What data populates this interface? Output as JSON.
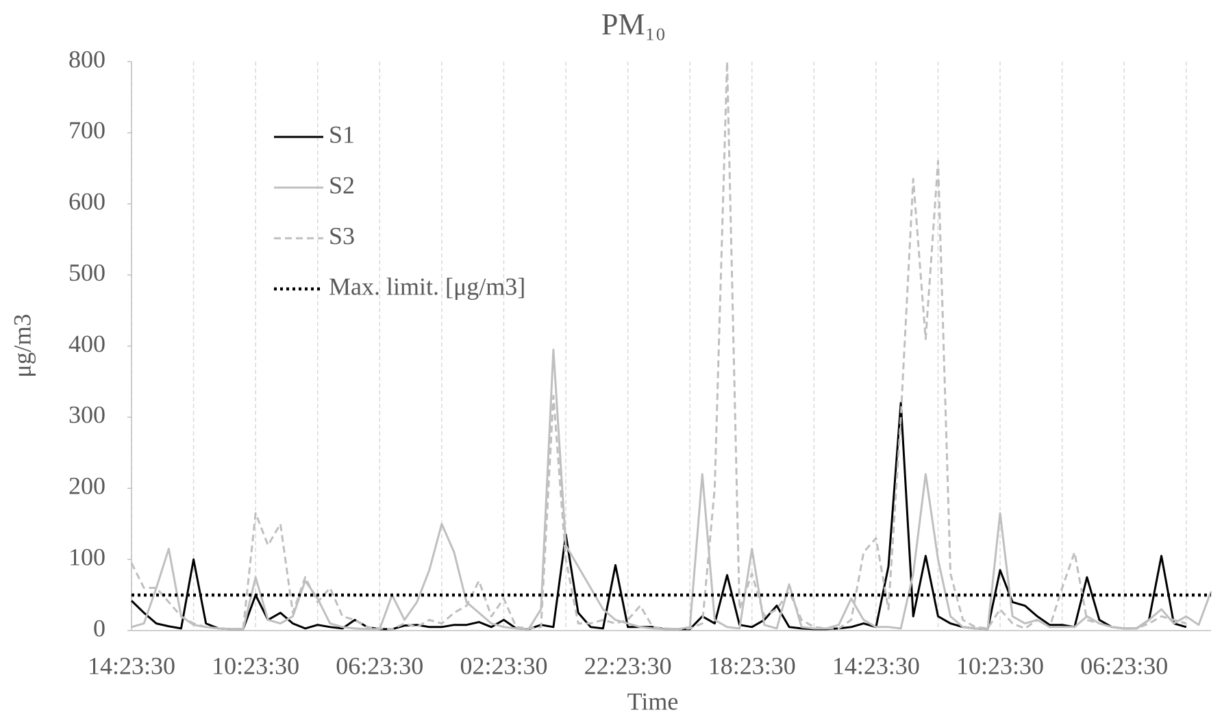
{
  "chart_data": {
    "type": "line",
    "title": "PM₁₀",
    "x_label": "Time",
    "y_label": "μg/m3",
    "categories": [
      "14:23:30",
      null,
      null,
      null,
      null,
      null,
      null,
      null,
      null,
      null,
      "10:23:30",
      null,
      null,
      null,
      null,
      null,
      null,
      null,
      null,
      null,
      "06:23:30",
      null,
      null,
      null,
      null,
      null,
      null,
      null,
      null,
      null,
      "02:23:30",
      null,
      null,
      null,
      null,
      null,
      null,
      null,
      null,
      null,
      "22:23:30",
      null,
      null,
      null,
      null,
      null,
      null,
      null,
      null,
      null,
      "18:23:30",
      null,
      null,
      null,
      null,
      null,
      null,
      null,
      null,
      null,
      "14:23:30",
      null,
      null,
      null,
      null,
      null,
      null,
      null,
      null,
      null,
      "10:23:30",
      null,
      null,
      null,
      null,
      null,
      null,
      null,
      null,
      null,
      "06:23:30",
      null,
      null,
      null,
      null,
      null,
      null,
      null
    ],
    "series": [
      {
        "name": "S1",
        "color": "#000000",
        "style": "solid",
        "values": [
          42,
          25,
          10,
          6,
          3,
          100,
          10,
          3,
          2,
          2,
          50,
          15,
          25,
          10,
          3,
          8,
          5,
          3,
          15,
          5,
          2,
          2,
          7,
          8,
          5,
          5,
          8,
          8,
          12,
          5,
          15,
          3,
          2,
          8,
          5,
          135,
          25,
          5,
          3,
          92,
          5,
          5,
          5,
          2,
          2,
          2,
          20,
          10,
          78,
          8,
          5,
          15,
          35,
          5,
          3,
          2,
          2,
          3,
          5,
          10,
          5,
          90,
          320,
          20,
          105,
          20,
          10,
          5,
          3,
          2,
          85,
          40,
          35,
          20,
          8,
          8,
          5,
          75,
          15,
          5,
          3,
          3,
          15,
          105,
          10,
          5,
          null,
          null
        ]
      },
      {
        "name": "S2",
        "color": "#bfbfbf",
        "style": "solid",
        "values": [
          5,
          10,
          60,
          115,
          20,
          8,
          5,
          3,
          2,
          2,
          75,
          15,
          10,
          20,
          70,
          45,
          10,
          5,
          3,
          2,
          2,
          50,
          15,
          40,
          85,
          150,
          110,
          40,
          25,
          10,
          5,
          3,
          2,
          30,
          395,
          120,
          90,
          60,
          30,
          15,
          10,
          5,
          3,
          2,
          2,
          5,
          220,
          15,
          5,
          3,
          115,
          8,
          3,
          65,
          5,
          3,
          3,
          8,
          45,
          15,
          5,
          5,
          3,
          80,
          220,
          100,
          20,
          5,
          3,
          2,
          165,
          20,
          10,
          15,
          5,
          5,
          5,
          20,
          10,
          5,
          3,
          3,
          15,
          30,
          10,
          20,
          8,
          55
        ]
      },
      {
        "name": "S3",
        "color": "#bfbfbf",
        "style": "dashed",
        "values": [
          95,
          60,
          60,
          40,
          20,
          10,
          5,
          3,
          2,
          3,
          165,
          120,
          150,
          25,
          75,
          40,
          60,
          20,
          15,
          5,
          3,
          2,
          10,
          5,
          15,
          10,
          25,
          35,
          70,
          20,
          45,
          5,
          3,
          5,
          330,
          100,
          10,
          10,
          15,
          10,
          15,
          35,
          5,
          3,
          2,
          3,
          10,
          200,
          800,
          30,
          80,
          20,
          30,
          55,
          15,
          5,
          3,
          3,
          15,
          110,
          130,
          30,
          300,
          635,
          410,
          660,
          80,
          15,
          5,
          3,
          30,
          10,
          3,
          15,
          5,
          60,
          110,
          15,
          10,
          5,
          3,
          3,
          10,
          20,
          15,
          10,
          null,
          null
        ]
      },
      {
        "name": "Max. limit. [μg/m3]",
        "color": "#000000",
        "style": "dotted",
        "values": [
          50,
          50,
          50,
          50,
          50,
          50,
          50,
          50,
          50,
          50,
          50,
          50,
          50,
          50,
          50,
          50,
          50,
          50,
          50,
          50,
          50,
          50,
          50,
          50,
          50,
          50,
          50,
          50,
          50,
          50,
          50,
          50,
          50,
          50,
          50,
          50,
          50,
          50,
          50,
          50,
          50,
          50,
          50,
          50,
          50,
          50,
          50,
          50,
          50,
          50,
          50,
          50,
          50,
          50,
          50,
          50,
          50,
          50,
          50,
          50,
          50,
          50,
          50,
          50,
          50,
          50,
          50,
          50,
          50,
          50,
          50,
          50,
          50,
          50,
          50,
          50,
          50,
          50,
          50,
          50,
          50,
          50,
          50,
          50,
          50,
          50,
          50,
          50
        ]
      }
    ],
    "ylim": [
      0,
      800
    ],
    "yticks": [
      0,
      100,
      200,
      300,
      400,
      500,
      600,
      700,
      800
    ],
    "grid": true,
    "legend": "upper left"
  }
}
